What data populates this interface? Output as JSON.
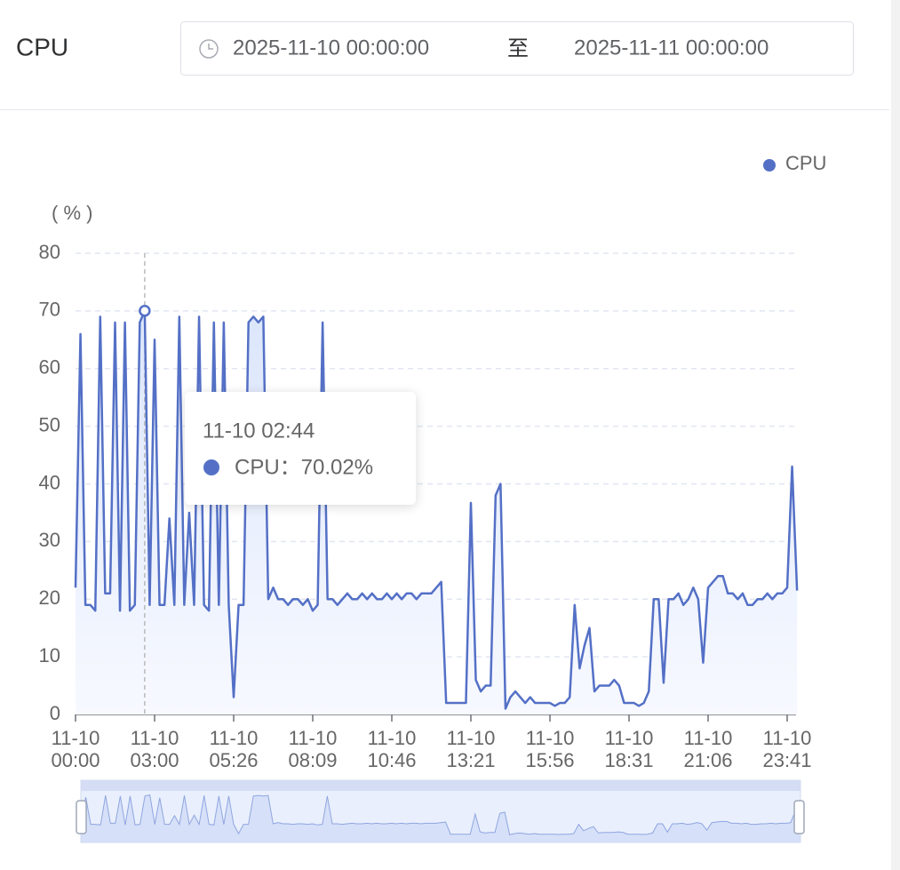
{
  "header": {
    "title": "CPU",
    "date_range": {
      "start": "2025-11-10 00:00:00",
      "separator": "至",
      "end": "2025-11-11 00:00:00"
    }
  },
  "chart_data": {
    "type": "line",
    "unit_label": "( % )",
    "categories": [
      "11-10\n00:00",
      null,
      null,
      null,
      null,
      null,
      null,
      null,
      null,
      null,
      null,
      null,
      null,
      null,
      null,
      null,
      "11-10\n03:00",
      null,
      null,
      null,
      null,
      null,
      null,
      null,
      null,
      null,
      null,
      null,
      null,
      null,
      null,
      null,
      "11-10\n05:26",
      null,
      null,
      null,
      null,
      null,
      null,
      null,
      null,
      null,
      null,
      null,
      null,
      null,
      null,
      null,
      "11-10\n08:09",
      null,
      null,
      null,
      null,
      null,
      null,
      null,
      null,
      null,
      null,
      null,
      null,
      null,
      null,
      null,
      "11-10\n10:46",
      null,
      null,
      null,
      null,
      null,
      null,
      null,
      null,
      null,
      null,
      null,
      null,
      null,
      null,
      null,
      "11-10\n13:21",
      null,
      null,
      null,
      null,
      null,
      null,
      null,
      null,
      null,
      null,
      null,
      null,
      null,
      null,
      null,
      "11-10\n15:56",
      null,
      null,
      null,
      null,
      null,
      null,
      null,
      null,
      null,
      null,
      null,
      null,
      null,
      null,
      null,
      "11-10\n18:31",
      null,
      null,
      null,
      null,
      null,
      null,
      null,
      null,
      null,
      null,
      null,
      null,
      null,
      null,
      null,
      "11-10\n21:06",
      null,
      null,
      null,
      null,
      null,
      null,
      null,
      null,
      null,
      null,
      null,
      null,
      null,
      null,
      null,
      "11-10\n23:41",
      null,
      null
    ],
    "series": [
      {
        "name": "CPU",
        "color": "#5470c6",
        "values": [
          22,
          66,
          19,
          19,
          18,
          69,
          21,
          21,
          68,
          18,
          68,
          18,
          19,
          68,
          70.02,
          19,
          65,
          19,
          19,
          34,
          19,
          69,
          19,
          35,
          19,
          69,
          19,
          18,
          68,
          19,
          68,
          19,
          3,
          19,
          19,
          68,
          69,
          68,
          69,
          20,
          22,
          20,
          20,
          19,
          20,
          20,
          19,
          20,
          18,
          19,
          68,
          20,
          20,
          19,
          20,
          21,
          20,
          20,
          21,
          20,
          21,
          20,
          20,
          21,
          20,
          21,
          20,
          21,
          21,
          20,
          21,
          21,
          21,
          22,
          23,
          2,
          2,
          2,
          2,
          2,
          36.7,
          6,
          4,
          5,
          5,
          38,
          40,
          1,
          3,
          4,
          3,
          2,
          3,
          2,
          2,
          2,
          2,
          1.5,
          2,
          2,
          3,
          19,
          8,
          12,
          15,
          4,
          5,
          5,
          5,
          6,
          5,
          2,
          2,
          2,
          1.5,
          2,
          4,
          20,
          20,
          5.5,
          20,
          20,
          21,
          19,
          20,
          22,
          20,
          9,
          22,
          23,
          24,
          24,
          21,
          21,
          20,
          21,
          19,
          19,
          20,
          20,
          21,
          20,
          21,
          21,
          22,
          43,
          21.5
        ]
      }
    ],
    "ylim": [
      0,
      80
    ],
    "yticks": [
      0,
      10,
      20,
      30,
      40,
      50,
      60,
      70,
      80
    ],
    "grid": true,
    "legend": "top-right",
    "tooltip": {
      "title": "11-10 02:44",
      "text": "CPU：70.02%"
    }
  }
}
